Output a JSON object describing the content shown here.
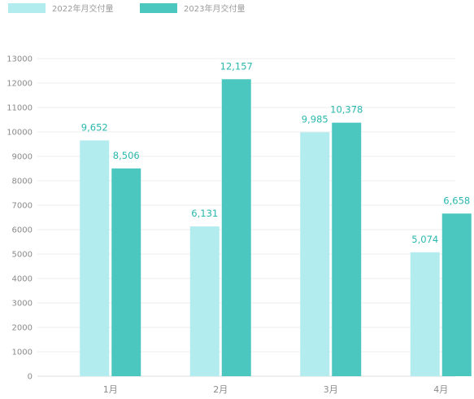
{
  "chart_data": {
    "type": "bar",
    "categories": [
      "1月",
      "2月",
      "3月",
      "4月"
    ],
    "series": [
      {
        "name": "2022年月交付量",
        "values": [
          9652,
          6131,
          9985,
          5074
        ],
        "labels": [
          "9,652",
          "6,131",
          "9,985",
          "5,074"
        ],
        "color": "#b2ecee"
      },
      {
        "name": "2023年月交付量",
        "values": [
          8506,
          12157,
          10378,
          6658
        ],
        "labels": [
          "8,506",
          "12,157",
          "10,378",
          "6,658"
        ],
        "color": "#4cc7bf"
      }
    ],
    "ylim": [
      0,
      13000
    ],
    "yticks": [
      "0",
      "1000",
      "2000",
      "3000",
      "4000",
      "5000",
      "6000",
      "7000",
      "8000",
      "9000",
      "10000",
      "11000",
      "12000",
      "13000"
    ],
    "label_color": "#2ab7ad",
    "grid": true,
    "legend_position": "top-left"
  }
}
